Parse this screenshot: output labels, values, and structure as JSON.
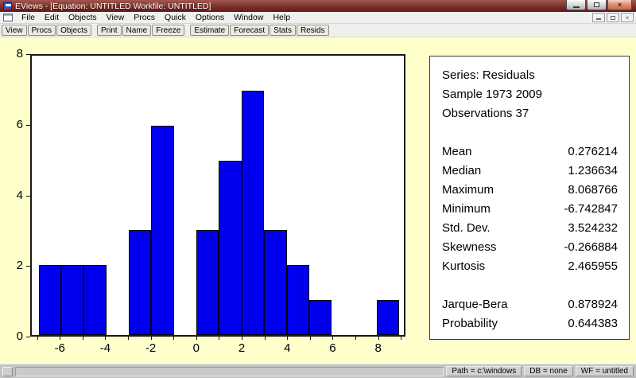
{
  "window": {
    "title": "EViews - [Equation: UNTITLED   Workfile: UNTITLED]",
    "close_glyph": "×"
  },
  "menubar": {
    "items": [
      "File",
      "Edit",
      "Objects",
      "View",
      "Procs",
      "Quick",
      "Options",
      "Window",
      "Help"
    ]
  },
  "toolbar": {
    "groups": [
      [
        "View",
        "Procs",
        "Objects"
      ],
      [
        "Print",
        "Name",
        "Freeze"
      ],
      [
        "Estimate",
        "Forecast",
        "Stats",
        "Resids"
      ]
    ]
  },
  "chart_data": {
    "type": "bar",
    "title": "",
    "xlabel": "",
    "ylabel": "",
    "bin_width": 1,
    "bin_left_edges": [
      -7,
      -6,
      -5,
      -4,
      -3,
      -2,
      -1,
      0,
      1,
      2,
      3,
      4,
      5,
      6,
      7,
      8
    ],
    "counts": [
      2,
      2,
      2,
      0,
      3,
      6,
      0,
      3,
      5,
      7,
      3,
      2,
      1,
      0,
      0,
      1
    ],
    "x_tick_labels": [
      -6,
      -4,
      -2,
      0,
      2,
      4,
      6,
      8
    ],
    "y_tick_labels": [
      0,
      2,
      4,
      6,
      8
    ],
    "xlim": [
      -7.3,
      9.2
    ],
    "ylim": [
      0,
      8
    ],
    "grid": false,
    "legend": null,
    "bar_color": "#0000ee",
    "bar_border_color": "#000000"
  },
  "stats_panel": {
    "header_lines": [
      "Series: Residuals",
      "Sample 1973 2009",
      "Observations 37"
    ],
    "rows_group1": [
      {
        "label": "Mean",
        "value": "0.276214"
      },
      {
        "label": "Median",
        "value": "1.236634"
      },
      {
        "label": "Maximum",
        "value": "8.068766"
      },
      {
        "label": "Minimum",
        "value": "-6.742847"
      },
      {
        "label": "Std. Dev.",
        "value": "3.524232"
      },
      {
        "label": "Skewness",
        "value": "-0.266884"
      },
      {
        "label": "Kurtosis",
        "value": "2.465955"
      }
    ],
    "rows_group2": [
      {
        "label": "Jarque-Bera",
        "value": "0.878924"
      },
      {
        "label": "Probability",
        "value": "0.644383"
      }
    ]
  },
  "statusbar": {
    "fields": [
      "Path = c:\\windows",
      "DB = none",
      "WF = untitled"
    ]
  },
  "colors": {
    "titlebar": "#7c2f27",
    "content_bg": "#ffffcc",
    "bar_blue": "#0000ee",
    "statusbar_bg": "#c3c3c3"
  }
}
